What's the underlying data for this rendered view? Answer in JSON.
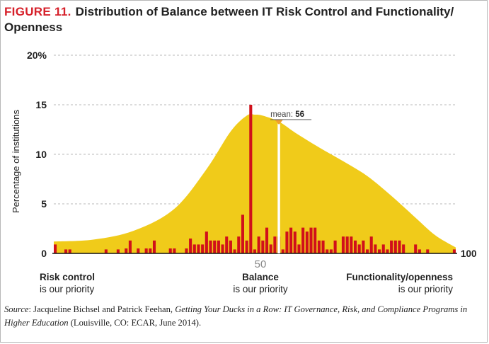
{
  "figure": {
    "label": "FIGURE 11.",
    "title": "Distribution of Balance between IT Risk Control and Functionality/ Openness"
  },
  "categories": {
    "left": {
      "bold": "Risk control",
      "sub": "is our priority"
    },
    "center": {
      "bold": "Balance",
      "sub": "is our priority"
    },
    "right": {
      "bold": "Functionality/openness",
      "sub": "is our priority"
    }
  },
  "source": {
    "prefix": "Source",
    "authors": ": Jacqueline Bichsel and Patrick Feehan, ",
    "work": "Getting Your Ducks in a Row: IT Governance, Risk, and Compliance Programs in Higher Education",
    "tail": " (Louisville, CO: ECAR, June 2014)."
  },
  "colors": {
    "accent_red": "#d6202a",
    "bars": "#d0101a",
    "curve_fill": "#f0cb1a",
    "mean_marker": "#f0a030",
    "grid": "#b8b8b8"
  },
  "chart_data": {
    "type": "bar",
    "title": "Distribution of Balance between IT Risk Control and Functionality/ Openness",
    "xlabel": "",
    "ylabel": "Percentage of institutions",
    "xlim": [
      0,
      100
    ],
    "ylim": [
      0,
      20
    ],
    "y_ticks": [
      0,
      5,
      10,
      15,
      20
    ],
    "y_tick_labels": [
      "0",
      "5",
      "10",
      "15",
      "20%"
    ],
    "x_ticks": [
      50,
      100
    ],
    "x_tick_labels": [
      "50",
      "100"
    ],
    "grid": true,
    "mean": {
      "label": "mean:",
      "value": 56
    },
    "distribution_curve": {
      "x": [
        0,
        10,
        20,
        30,
        38,
        44,
        48,
        50,
        52,
        56,
        60,
        66,
        72,
        78,
        84,
        90,
        95,
        100
      ],
      "y": [
        1.2,
        1.4,
        2.3,
        4.5,
        8.5,
        12.3,
        13.9,
        14.0,
        13.9,
        13.3,
        12.2,
        10.7,
        9.3,
        7.8,
        5.8,
        3.6,
        1.8,
        0.6
      ]
    },
    "x": [
      0,
      3,
      4,
      13,
      16,
      18,
      19,
      21,
      23,
      24,
      25,
      29,
      30,
      33,
      34,
      35,
      36,
      37,
      38,
      39,
      40,
      41,
      42,
      43,
      44,
      45,
      46,
      47,
      48,
      49,
      50,
      51,
      52,
      53,
      54,
      55,
      56,
      57,
      58,
      59,
      60,
      61,
      62,
      63,
      64,
      65,
      66,
      67,
      68,
      69,
      70,
      72,
      73,
      74,
      75,
      76,
      77,
      78,
      79,
      80,
      81,
      82,
      83,
      84,
      85,
      86,
      87,
      90,
      91,
      93,
      100
    ],
    "values": [
      0.9,
      0.4,
      0.4,
      0.4,
      0.4,
      0.5,
      1.3,
      0.5,
      0.5,
      0.5,
      1.3,
      0.5,
      0.5,
      0.5,
      1.5,
      0.9,
      0.9,
      0.9,
      2.2,
      1.3,
      1.3,
      1.3,
      0.9,
      1.7,
      1.3,
      0.4,
      1.7,
      3.9,
      1.3,
      15.0,
      0.4,
      1.7,
      1.3,
      2.6,
      0.9,
      1.7,
      1.7,
      0.4,
      2.2,
      2.6,
      2.2,
      0.9,
      2.6,
      2.2,
      2.6,
      2.6,
      1.3,
      1.3,
      0.4,
      0.4,
      1.3,
      1.7,
      1.7,
      1.7,
      1.3,
      0.9,
      1.3,
      0.4,
      1.7,
      0.9,
      0.4,
      0.9,
      0.4,
      1.3,
      1.3,
      1.3,
      0.9,
      0.9,
      0.4,
      0.4,
      0.4
    ]
  }
}
